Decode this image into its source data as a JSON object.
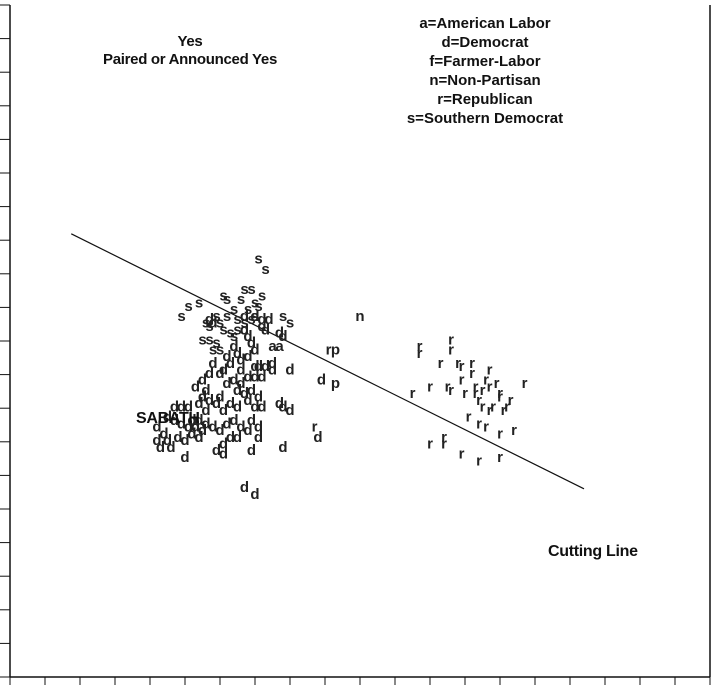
{
  "chart_data": {
    "type": "scatter",
    "title": "",
    "xlabel": "",
    "ylabel": "",
    "xlim": [
      -1,
      1
    ],
    "ylim": [
      -1,
      1
    ],
    "header_left": [
      "Yes",
      "Paired or Announced Yes"
    ],
    "legend": [
      "a=American Labor",
      "d=Democrat",
      "f=Farmer-Labor",
      "n=Non-Partisan",
      "r=Republican",
      "s=Southern Democrat"
    ],
    "named_legislator": "SABATH",
    "cutting_line": {
      "label": "Cutting Line",
      "points": [
        [
          -0.825,
          0.319
        ],
        [
          0.64,
          -0.44
        ]
      ]
    },
    "series": [
      {
        "name": "s",
        "color": "#222222",
        "points": [
          [
            -0.29,
            0.23
          ],
          [
            -0.27,
            0.2
          ],
          [
            -0.39,
            0.12
          ],
          [
            -0.33,
            0.14
          ],
          [
            -0.31,
            0.14
          ],
          [
            -0.28,
            0.12
          ],
          [
            -0.46,
            0.1
          ],
          [
            -0.38,
            0.11
          ],
          [
            -0.34,
            0.11
          ],
          [
            -0.32,
            0.08
          ],
          [
            -0.3,
            0.06
          ],
          [
            -0.49,
            0.09
          ],
          [
            -0.51,
            0.06
          ],
          [
            -0.36,
            0.08
          ],
          [
            -0.41,
            0.06
          ],
          [
            -0.38,
            0.06
          ],
          [
            -0.35,
            0.05
          ],
          [
            -0.33,
            0.04
          ],
          [
            -0.31,
            0.05
          ],
          [
            -0.4,
            0.04
          ],
          [
            -0.39,
            0.02
          ],
          [
            -0.37,
            0.01
          ],
          [
            -0.36,
            0.0
          ],
          [
            -0.35,
            0.02
          ],
          [
            -0.22,
            0.06
          ],
          [
            -0.2,
            0.04
          ],
          [
            -0.44,
            0.04
          ],
          [
            -0.43,
            0.03
          ],
          [
            -0.45,
            -0.01
          ],
          [
            -0.43,
            -0.01
          ],
          [
            -0.41,
            -0.02
          ],
          [
            -0.42,
            -0.04
          ],
          [
            -0.4,
            -0.04
          ],
          [
            -0.3,
            0.1
          ],
          [
            -0.29,
            0.09
          ]
        ]
      },
      {
        "name": "d",
        "color": "#222222",
        "points": [
          [
            -0.33,
            0.06
          ],
          [
            -0.3,
            0.06
          ],
          [
            -0.28,
            0.05
          ],
          [
            -0.26,
            0.05
          ],
          [
            -0.43,
            0.05
          ],
          [
            -0.42,
            0.04
          ],
          [
            -0.28,
            0.03
          ],
          [
            -0.27,
            0.02
          ],
          [
            -0.23,
            0.01
          ],
          [
            -0.22,
            0.0
          ],
          [
            -0.31,
            -0.02
          ],
          [
            -0.3,
            -0.04
          ],
          [
            -0.36,
            -0.03
          ],
          [
            -0.35,
            -0.05
          ],
          [
            -0.38,
            -0.06
          ],
          [
            -0.37,
            -0.08
          ],
          [
            -0.39,
            -0.1
          ],
          [
            -0.34,
            -0.07
          ],
          [
            -0.34,
            -0.1
          ],
          [
            -0.32,
            -0.12
          ],
          [
            -0.3,
            -0.09
          ],
          [
            -0.29,
            -0.09
          ],
          [
            -0.27,
            -0.09
          ],
          [
            -0.25,
            -0.1
          ],
          [
            -0.3,
            -0.12
          ],
          [
            -0.28,
            -0.12
          ],
          [
            -0.32,
            -0.06
          ],
          [
            -0.4,
            -0.11
          ],
          [
            -0.42,
            -0.08
          ],
          [
            -0.43,
            -0.11
          ],
          [
            -0.45,
            -0.13
          ],
          [
            -0.47,
            -0.15
          ],
          [
            -0.44,
            -0.16
          ],
          [
            -0.45,
            -0.18
          ],
          [
            -0.43,
            -0.19
          ],
          [
            -0.41,
            -0.2
          ],
          [
            -0.4,
            -0.18
          ],
          [
            -0.38,
            -0.14
          ],
          [
            -0.36,
            -0.13
          ],
          [
            -0.35,
            -0.16
          ],
          [
            -0.34,
            -0.14
          ],
          [
            -0.33,
            -0.17
          ],
          [
            -0.32,
            -0.19
          ],
          [
            -0.31,
            -0.16
          ],
          [
            -0.29,
            -0.18
          ],
          [
            -0.3,
            -0.21
          ],
          [
            -0.28,
            -0.21
          ],
          [
            -0.35,
            -0.21
          ],
          [
            -0.37,
            -0.2
          ],
          [
            -0.39,
            -0.22
          ],
          [
            -0.2,
            -0.1
          ],
          [
            -0.11,
            -0.13
          ],
          [
            -0.23,
            -0.2
          ],
          [
            -0.22,
            -0.21
          ],
          [
            -0.2,
            -0.22
          ],
          [
            -0.46,
            -0.2
          ],
          [
            -0.44,
            -0.22
          ],
          [
            -0.53,
            -0.21
          ],
          [
            -0.51,
            -0.21
          ],
          [
            -0.49,
            -0.21
          ],
          [
            -0.55,
            -0.24
          ],
          [
            -0.53,
            -0.25
          ],
          [
            -0.51,
            -0.26
          ],
          [
            -0.49,
            -0.27
          ],
          [
            -0.48,
            -0.25
          ],
          [
            -0.46,
            -0.25
          ],
          [
            -0.58,
            -0.27
          ],
          [
            -0.56,
            -0.29
          ],
          [
            -0.58,
            -0.31
          ],
          [
            -0.57,
            -0.33
          ],
          [
            -0.55,
            -0.31
          ],
          [
            -0.54,
            -0.33
          ],
          [
            -0.52,
            -0.3
          ],
          [
            -0.5,
            -0.31
          ],
          [
            -0.48,
            -0.29
          ],
          [
            -0.47,
            -0.27
          ],
          [
            -0.46,
            -0.3
          ],
          [
            -0.45,
            -0.28
          ],
          [
            -0.44,
            -0.26
          ],
          [
            -0.42,
            -0.27
          ],
          [
            -0.4,
            -0.28
          ],
          [
            -0.38,
            -0.26
          ],
          [
            -0.36,
            -0.25
          ],
          [
            -0.34,
            -0.27
          ],
          [
            -0.32,
            -0.28
          ],
          [
            -0.31,
            -0.25
          ],
          [
            -0.29,
            -0.27
          ],
          [
            -0.29,
            -0.3
          ],
          [
            -0.35,
            -0.3
          ],
          [
            -0.37,
            -0.3
          ],
          [
            -0.39,
            -0.32
          ],
          [
            -0.41,
            -0.34
          ],
          [
            -0.39,
            -0.35
          ],
          [
            -0.31,
            -0.34
          ],
          [
            -0.5,
            -0.36
          ],
          [
            -0.22,
            -0.33
          ],
          [
            -0.12,
            -0.3
          ],
          [
            -0.33,
            -0.45
          ],
          [
            -0.3,
            -0.47
          ],
          [
            -0.25,
            -0.08
          ],
          [
            -0.32,
            0.0
          ],
          [
            -0.33,
            0.02
          ]
        ]
      },
      {
        "name": "a",
        "color": "#222222",
        "points": [
          [
            -0.25,
            -0.03
          ],
          [
            -0.23,
            -0.03
          ]
        ]
      },
      {
        "name": "p",
        "color": "#222222",
        "points": [
          [
            -0.07,
            -0.04
          ],
          [
            -0.07,
            -0.14
          ]
        ]
      },
      {
        "name": "n",
        "color": "#222222",
        "points": [
          [
            0.0,
            0.06
          ]
        ]
      },
      {
        "name": "r",
        "color": "#222222",
        "points": [
          [
            -0.09,
            -0.04
          ],
          [
            -0.13,
            -0.27
          ],
          [
            0.17,
            -0.03
          ],
          [
            0.26,
            -0.01
          ],
          [
            0.17,
            -0.05
          ],
          [
            0.23,
            -0.08
          ],
          [
            0.28,
            -0.08
          ],
          [
            0.32,
            -0.08
          ],
          [
            0.37,
            -0.1
          ],
          [
            0.32,
            -0.11
          ],
          [
            0.36,
            -0.13
          ],
          [
            0.39,
            -0.14
          ],
          [
            0.29,
            -0.13
          ],
          [
            0.33,
            -0.15
          ],
          [
            0.37,
            -0.15
          ],
          [
            0.4,
            -0.17
          ],
          [
            0.43,
            -0.19
          ],
          [
            0.47,
            -0.14
          ],
          [
            0.2,
            -0.15
          ],
          [
            0.25,
            -0.15
          ],
          [
            0.26,
            -0.16
          ],
          [
            0.3,
            -0.17
          ],
          [
            0.33,
            -0.17
          ],
          [
            0.35,
            -0.16
          ],
          [
            0.15,
            -0.17
          ],
          [
            0.35,
            -0.21
          ],
          [
            0.38,
            -0.21
          ],
          [
            0.41,
            -0.22
          ],
          [
            0.31,
            -0.24
          ],
          [
            0.34,
            -0.26
          ],
          [
            0.36,
            -0.27
          ],
          [
            0.24,
            -0.3
          ],
          [
            0.4,
            -0.29
          ],
          [
            0.4,
            -0.36
          ],
          [
            0.34,
            -0.37
          ],
          [
            0.24,
            -0.32
          ],
          [
            0.2,
            -0.32
          ],
          [
            0.29,
            -0.35
          ],
          [
            0.4,
            -0.18
          ],
          [
            0.26,
            -0.04
          ],
          [
            0.44,
            -0.28
          ],
          [
            0.34,
            -0.19
          ],
          [
            0.37,
            -0.22
          ],
          [
            0.29,
            -0.09
          ],
          [
            0.42,
            -0.21
          ]
        ]
      }
    ],
    "grid": false
  }
}
